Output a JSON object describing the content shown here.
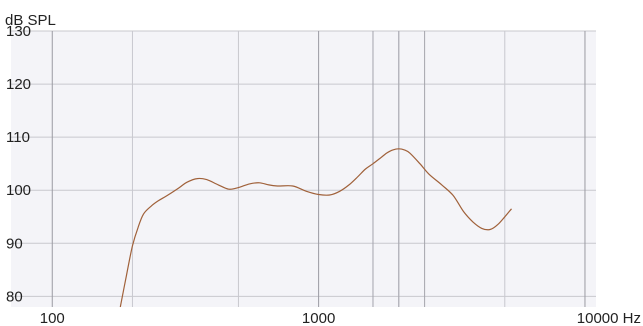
{
  "chart_data": {
    "type": "line",
    "ylabel": "dB SPL",
    "xunit": "Hz",
    "x_scale": "log",
    "xlim": [
      70,
      11000
    ],
    "ylim": [
      78,
      130
    ],
    "x_ticks": [
      100,
      1000,
      10000
    ],
    "x_tick_labels": [
      "100",
      "1000",
      "10000 Hz"
    ],
    "y_ticks": [
      80,
      90,
      100,
      110,
      120,
      130
    ],
    "y_tick_labels": [
      "80",
      "90",
      "100",
      "110",
      "120",
      "130"
    ],
    "grid": true,
    "colors": {
      "line": "#a0613a",
      "grid": "#c8c8ce",
      "plot_bg": "#f4f4f8"
    },
    "series": [
      {
        "points": [
          [
            180,
            78
          ],
          [
            190,
            84
          ],
          [
            200,
            89.5
          ],
          [
            210,
            93
          ],
          [
            220,
            95.5
          ],
          [
            235,
            97
          ],
          [
            250,
            98
          ],
          [
            270,
            99
          ],
          [
            300,
            100.5
          ],
          [
            320,
            101.5
          ],
          [
            350,
            102.2
          ],
          [
            380,
            102
          ],
          [
            420,
            101
          ],
          [
            460,
            100.2
          ],
          [
            500,
            100.5
          ],
          [
            550,
            101.2
          ],
          [
            600,
            101.4
          ],
          [
            650,
            101
          ],
          [
            700,
            100.8
          ],
          [
            800,
            100.8
          ],
          [
            900,
            99.8
          ],
          [
            1000,
            99.2
          ],
          [
            1100,
            99.1
          ],
          [
            1200,
            99.8
          ],
          [
            1300,
            101
          ],
          [
            1400,
            102.5
          ],
          [
            1500,
            104
          ],
          [
            1600,
            105
          ],
          [
            1700,
            106
          ],
          [
            1800,
            107
          ],
          [
            1900,
            107.6
          ],
          [
            2000,
            107.8
          ],
          [
            2100,
            107.6
          ],
          [
            2200,
            107
          ],
          [
            2400,
            105
          ],
          [
            2600,
            103
          ],
          [
            2900,
            101
          ],
          [
            3200,
            99
          ],
          [
            3500,
            96
          ],
          [
            3800,
            94
          ],
          [
            4100,
            92.8
          ],
          [
            4400,
            92.6
          ],
          [
            4700,
            93.5
          ],
          [
            5000,
            95
          ],
          [
            5300,
            96.5
          ]
        ]
      }
    ]
  }
}
